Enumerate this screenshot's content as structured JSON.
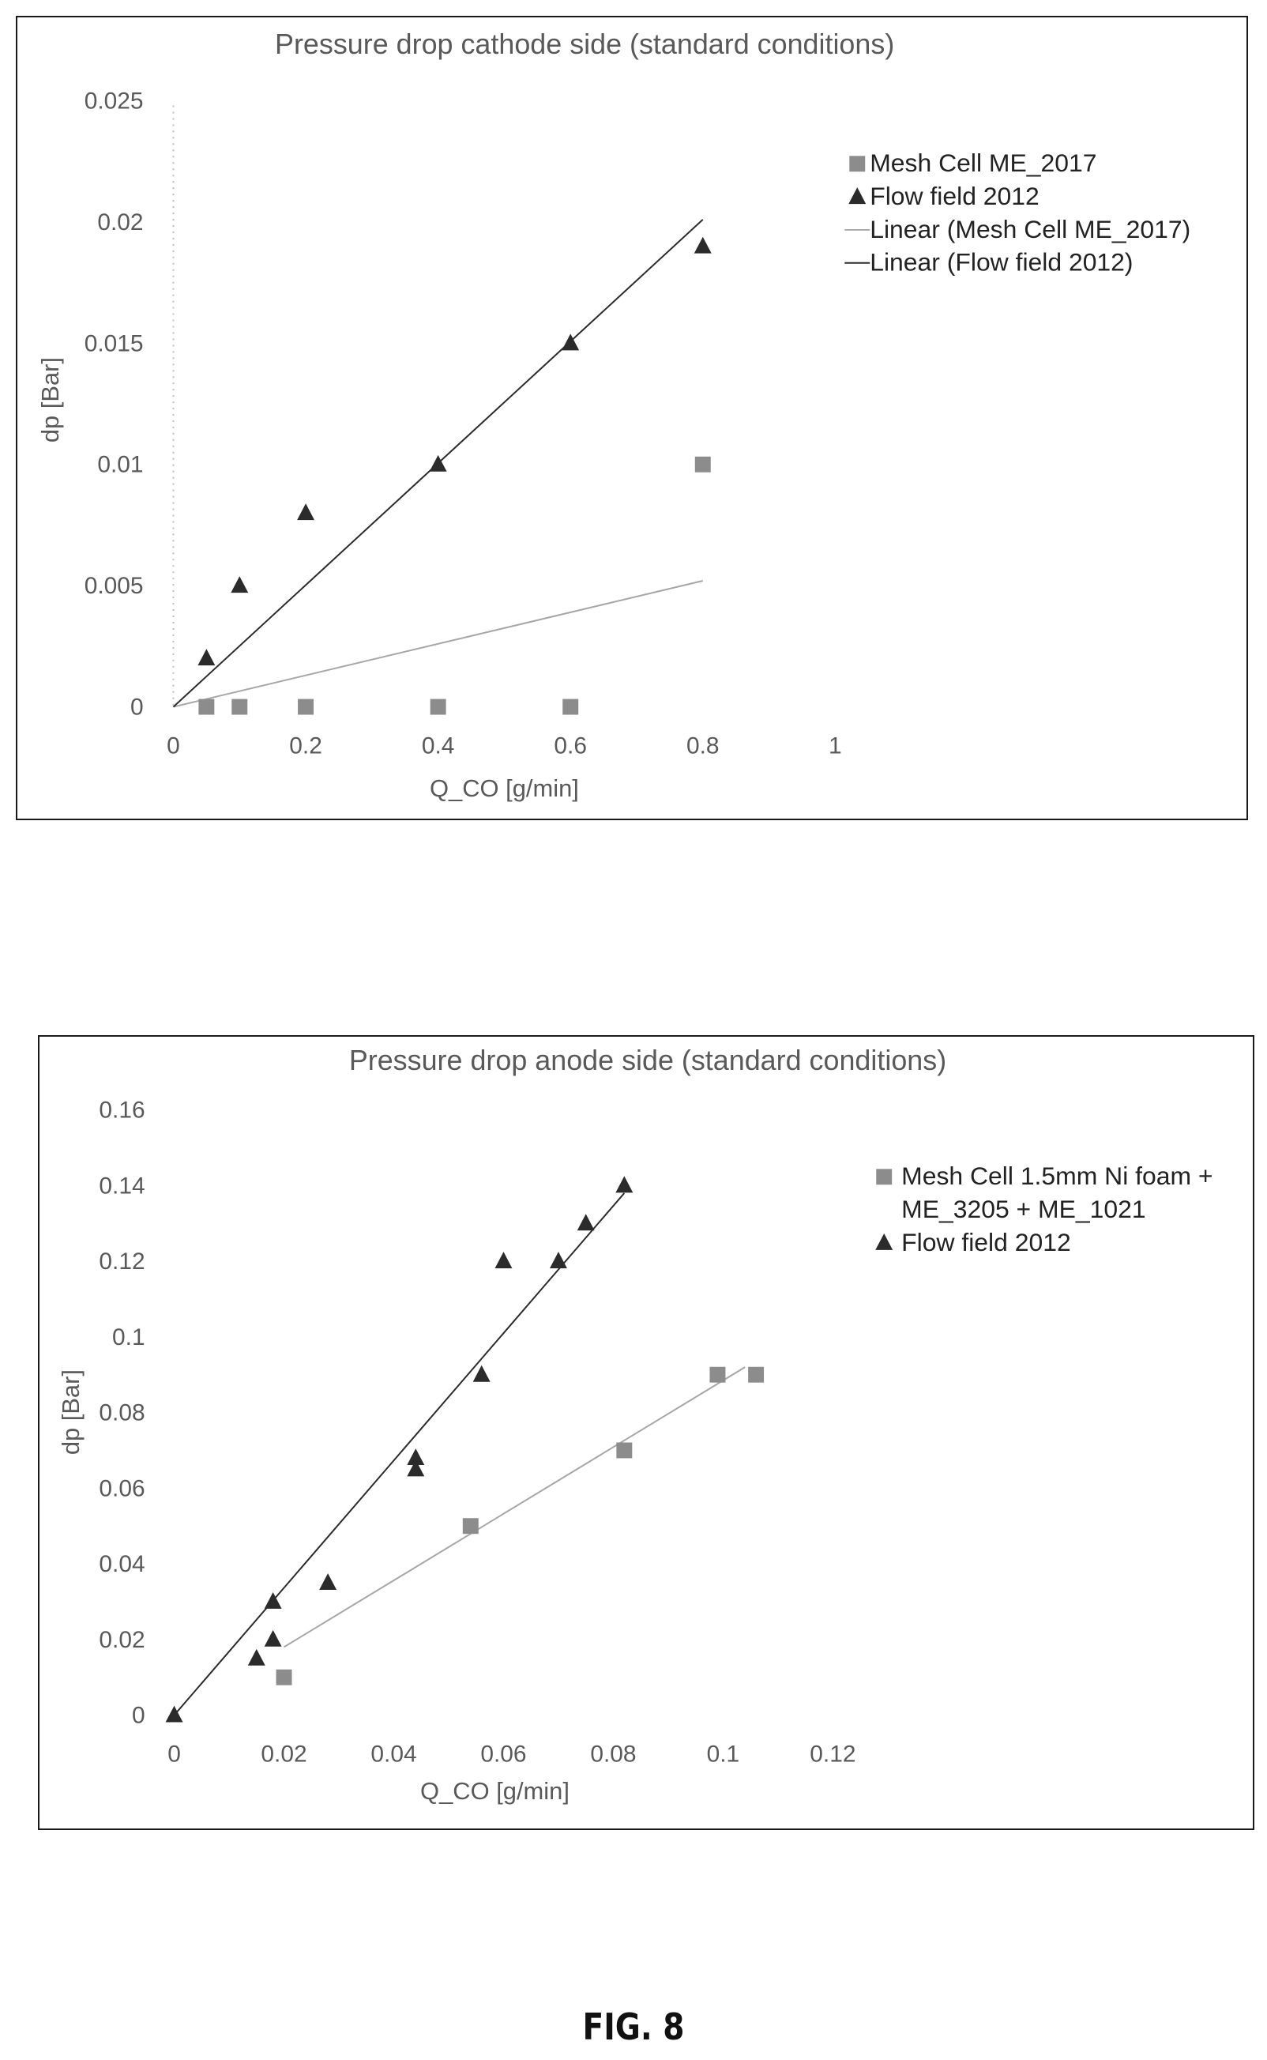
{
  "figure_label": "FIG. 8",
  "chart_data": [
    {
      "type": "scatter",
      "title": "Pressure drop cathode side (standard conditions)",
      "xlabel": "Q_CO [g/min]",
      "ylabel": "dp [Bar]",
      "xlim": [
        0,
        1
      ],
      "ylim": [
        0,
        0.025
      ],
      "x_ticks": [
        "0",
        "0.2",
        "0.4",
        "0.6",
        "0.8",
        "1"
      ],
      "y_ticks": [
        "0",
        "0.005",
        "0.01",
        "0.015",
        "0.02",
        "0.025"
      ],
      "grid": false,
      "legend_position": "top-right",
      "series": [
        {
          "name": "Mesh Cell ME_2017",
          "marker": "square",
          "color": "#8c8c8c",
          "points": [
            [
              0.05,
              0
            ],
            [
              0.1,
              0
            ],
            [
              0.2,
              0
            ],
            [
              0.4,
              0
            ],
            [
              0.6,
              0
            ],
            [
              0.8,
              0.01
            ]
          ]
        },
        {
          "name": "Flow field 2012",
          "marker": "triangle",
          "color": "#2b2b2b",
          "points": [
            [
              0.05,
              0.002
            ],
            [
              0.1,
              0.005
            ],
            [
              0.2,
              0.008
            ],
            [
              0.4,
              0.01
            ],
            [
              0.6,
              0.015
            ],
            [
              0.8,
              0.019
            ]
          ]
        }
      ],
      "trendlines": [
        {
          "name": "Linear (Mesh Cell ME_2017)",
          "color": "#a6a6a6",
          "from": [
            0,
            0
          ],
          "to": [
            0.8,
            0.0052
          ]
        },
        {
          "name": "Linear (Flow field 2012)",
          "color": "#2b2b2b",
          "from": [
            0,
            0
          ],
          "to": [
            0.8,
            0.0201
          ]
        }
      ]
    },
    {
      "type": "scatter",
      "title": "Pressure drop anode side (standard conditions)",
      "xlabel": "Q_CO [g/min]",
      "ylabel": "dp [Bar]",
      "xlim": [
        0,
        0.12
      ],
      "ylim": [
        0,
        0.16
      ],
      "x_ticks": [
        "0",
        "0.02",
        "0.04",
        "0.06",
        "0.08",
        "0.1",
        "0.12"
      ],
      "y_ticks": [
        "0",
        "0.02",
        "0.04",
        "0.06",
        "0.08",
        "0.1",
        "0.12",
        "0.14",
        "0.16"
      ],
      "grid": false,
      "legend_position": "top-right",
      "series": [
        {
          "name": "Mesh Cell 1.5mm Ni foam +\nME_3205 + ME_1021",
          "marker": "square",
          "color": "#8c8c8c",
          "points": [
            [
              0.02,
              0.01
            ],
            [
              0.054,
              0.05
            ],
            [
              0.082,
              0.07
            ],
            [
              0.099,
              0.09
            ],
            [
              0.106,
              0.09
            ]
          ]
        },
        {
          "name": "Flow field 2012",
          "marker": "triangle",
          "color": "#2b2b2b",
          "points": [
            [
              0,
              0
            ],
            [
              0.015,
              0.015
            ],
            [
              0.018,
              0.02
            ],
            [
              0.018,
              0.03
            ],
            [
              0.028,
              0.035
            ],
            [
              0.044,
              0.065
            ],
            [
              0.044,
              0.068
            ],
            [
              0.056,
              0.09
            ],
            [
              0.06,
              0.12
            ],
            [
              0.07,
              0.12
            ],
            [
              0.075,
              0.13
            ],
            [
              0.082,
              0.14
            ]
          ]
        }
      ],
      "trendlines": [
        {
          "color": "#a6a6a6",
          "from": [
            0.02,
            0.018
          ],
          "to": [
            0.104,
            0.092
          ]
        },
        {
          "color": "#2b2b2b",
          "from": [
            0,
            0
          ],
          "to": [
            0.082,
            0.138
          ]
        }
      ]
    }
  ]
}
